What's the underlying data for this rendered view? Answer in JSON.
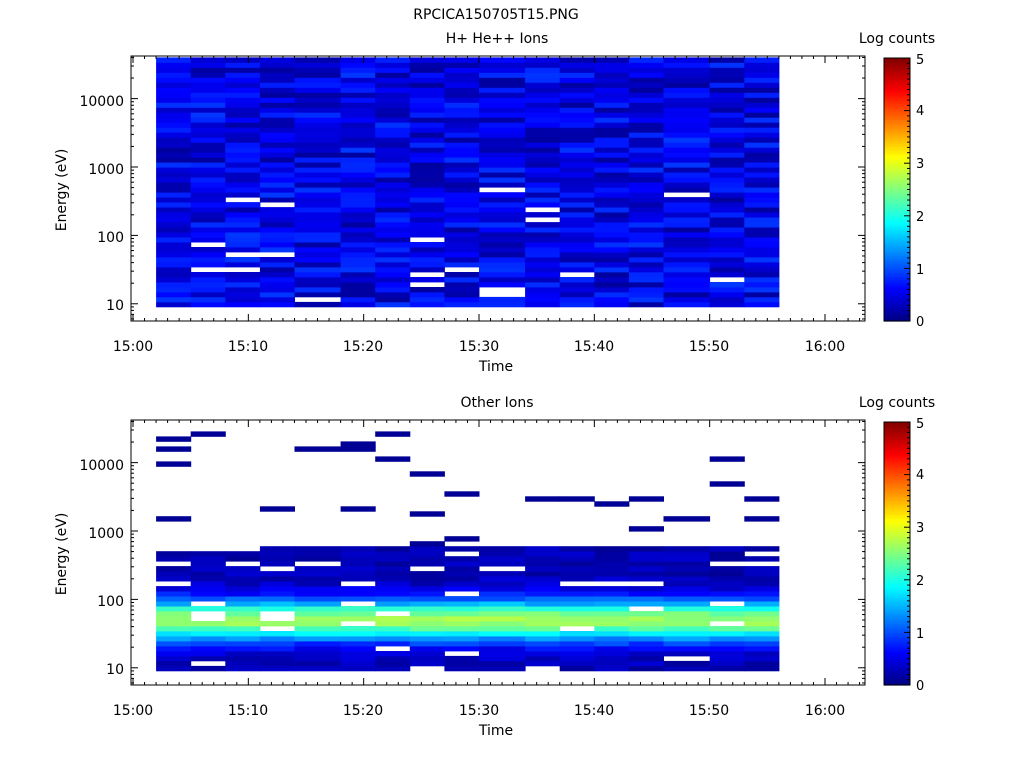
{
  "title": "RPCICA150705T15.PNG",
  "colorbar": {
    "title": "Log counts",
    "min": 0,
    "max": 5,
    "ticks": [
      "0",
      "1",
      "2",
      "3",
      "4",
      "5"
    ]
  },
  "chart_data": [
    {
      "type": "heatmap",
      "title": "H+ He++ Ions",
      "xlabel": "Time",
      "ylabel": "Energy (eV)",
      "x_ticks": [
        "15:00",
        "15:10",
        "15:20",
        "15:30",
        "15:40",
        "15:50",
        "16:00"
      ],
      "y_ticks": [
        "10",
        "100",
        "1000",
        "10000"
      ],
      "y_scale": "log",
      "xlim": [
        "15:00",
        "16:03"
      ],
      "ylim": [
        5.6,
        42000
      ],
      "time_bins": [
        "15:02",
        "15:05",
        "15:08",
        "15:11",
        "15:14",
        "15:18",
        "15:21",
        "15:24",
        "15:27",
        "15:30",
        "15:34",
        "15:37",
        "15:40",
        "15:43",
        "15:46",
        "15:50",
        "15:53"
      ],
      "data_end": "15:56",
      "energy_bins": 50,
      "colorbar": "Log counts",
      "value_range": [
        0,
        5
      ],
      "description_of_values": "mostly 0-0.9 (dark to medium blue) across all energies"
    },
    {
      "type": "heatmap",
      "title": "Other Ions",
      "xlabel": "Time",
      "ylabel": "Energy (eV)",
      "x_ticks": [
        "15:00",
        "15:10",
        "15:20",
        "15:30",
        "15:40",
        "15:50",
        "16:00"
      ],
      "y_ticks": [
        "10",
        "100",
        "1000",
        "10000"
      ],
      "y_scale": "log",
      "xlim": [
        "15:00",
        "16:03"
      ],
      "ylim": [
        5.6,
        42000
      ],
      "time_bins": [
        "15:02",
        "15:05",
        "15:08",
        "15:11",
        "15:14",
        "15:18",
        "15:21",
        "15:24",
        "15:27",
        "15:30",
        "15:34",
        "15:37",
        "15:40",
        "15:43",
        "15:46",
        "15:50",
        "15:53"
      ],
      "data_end": "15:56",
      "energy_bins": 50,
      "colorbar": "Log counts",
      "value_range": [
        0,
        5
      ],
      "peak_energy_eV": 50,
      "peak_value": 2.4
    }
  ]
}
